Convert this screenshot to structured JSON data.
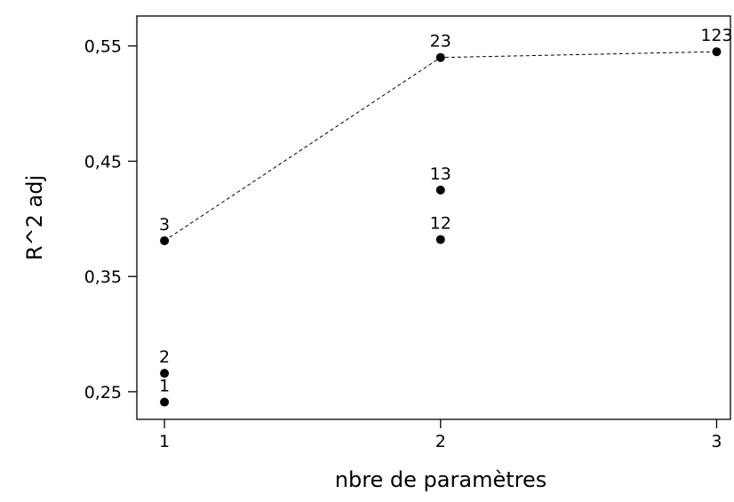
{
  "chart_data": {
    "type": "scatter",
    "xlabel": "nbre de paramètres",
    "ylabel": "R^2 adj",
    "xlim": [
      0.9,
      3.05
    ],
    "ylim": [
      0.226,
      0.576
    ],
    "x_ticks": [
      1,
      2,
      3
    ],
    "x_tick_labels": [
      "1",
      "2",
      "3"
    ],
    "y_ticks": [
      0.25,
      0.35,
      0.45,
      0.55
    ],
    "y_tick_labels": [
      "0,25",
      "0,35",
      "0,45",
      "0,55"
    ],
    "grid": false,
    "points": [
      {
        "label": "1",
        "x": 1,
        "y": 0.241
      },
      {
        "label": "2",
        "x": 1,
        "y": 0.266
      },
      {
        "label": "3",
        "x": 1,
        "y": 0.381
      },
      {
        "label": "12",
        "x": 2,
        "y": 0.382
      },
      {
        "label": "13",
        "x": 2,
        "y": 0.425
      },
      {
        "label": "23",
        "x": 2,
        "y": 0.54
      },
      {
        "label": "123",
        "x": 3,
        "y": 0.545
      }
    ],
    "best_line": {
      "style": "dashed",
      "x": [
        1,
        2,
        3
      ],
      "y": [
        0.381,
        0.54,
        0.545
      ]
    }
  }
}
